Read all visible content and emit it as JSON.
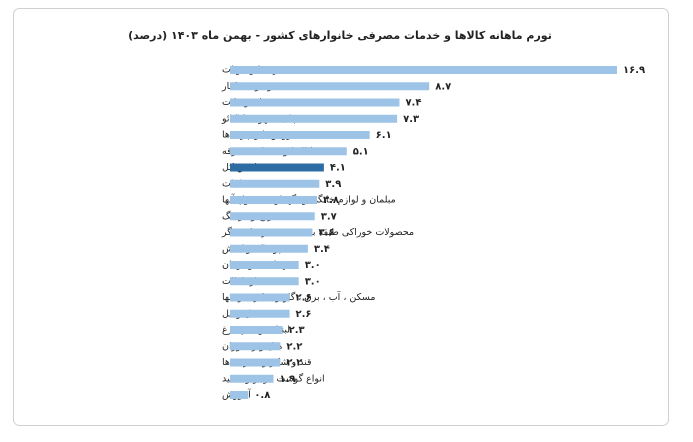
{
  "chart_data": {
    "type": "bar",
    "orientation": "horizontal",
    "title": "تورم ماهانه کالاها و خدمات مصرفی خانوارهای کشور - بهمن ماه ۱۴۰۳ (درصد)",
    "categories": [
      "سبزی‌ها وحبوبات",
      "میوه و خشکبار",
      "نان و غلات",
      "چای ، قهوه ، کاکائو",
      "روغن‌ها و چربی‌ها",
      "کالاها و خدمات متفرقه",
      "شاخص کل",
      "دخانیات",
      "مبلمان و لوازم خانگی و نگهداری معمول آنها",
      "تفریح و فرهنگ",
      "محصولات خوراکی طبقه بندی نشده در جای دیگر",
      "پوشاک و کفش",
      "بهداشت و درمان",
      "ارتباطات",
      "مسکن ، آب ، برق ، گاز و سایر سوختها",
      "حمل ونقل",
      "لبنیات و تخم مرغ",
      "هتل و رستوران",
      "قند و شکر و شیرینی‌ها",
      "انواع گوشت قرمز و سفید",
      "آموزش"
    ],
    "values": [
      16.9,
      8.7,
      7.4,
      7.3,
      6.1,
      5.1,
      4.1,
      3.9,
      3.8,
      3.7,
      3.6,
      3.4,
      3.0,
      3.0,
      2.6,
      2.6,
      2.3,
      2.2,
      2.2,
      1.9,
      0.8
    ],
    "value_labels": [
      "۱۶.۹",
      "۸.۷",
      "۷.۴",
      "۷.۳",
      "۶.۱",
      "۵.۱",
      "۴.۱",
      "۳.۹",
      "۳.۸",
      "۳.۷",
      "۳.۶",
      "۳.۴",
      "۳.۰",
      "۳.۰",
      "۲.۶",
      "۲.۶",
      "۲.۳",
      "۲.۲",
      "۲.۲",
      "۱.۹",
      "۰.۸"
    ],
    "colors": [
      "#9dc3e6",
      "#9dc3e6",
      "#9dc3e6",
      "#9dc3e6",
      "#9dc3e6",
      "#9dc3e6",
      "#2e6da4",
      "#9dc3e6",
      "#9dc3e6",
      "#9dc3e6",
      "#9dc3e6",
      "#9dc3e6",
      "#9dc3e6",
      "#9dc3e6",
      "#9dc3e6",
      "#9dc3e6",
      "#9dc3e6",
      "#9dc3e6",
      "#9dc3e6",
      "#9dc3e6",
      "#9dc3e6"
    ]
  }
}
